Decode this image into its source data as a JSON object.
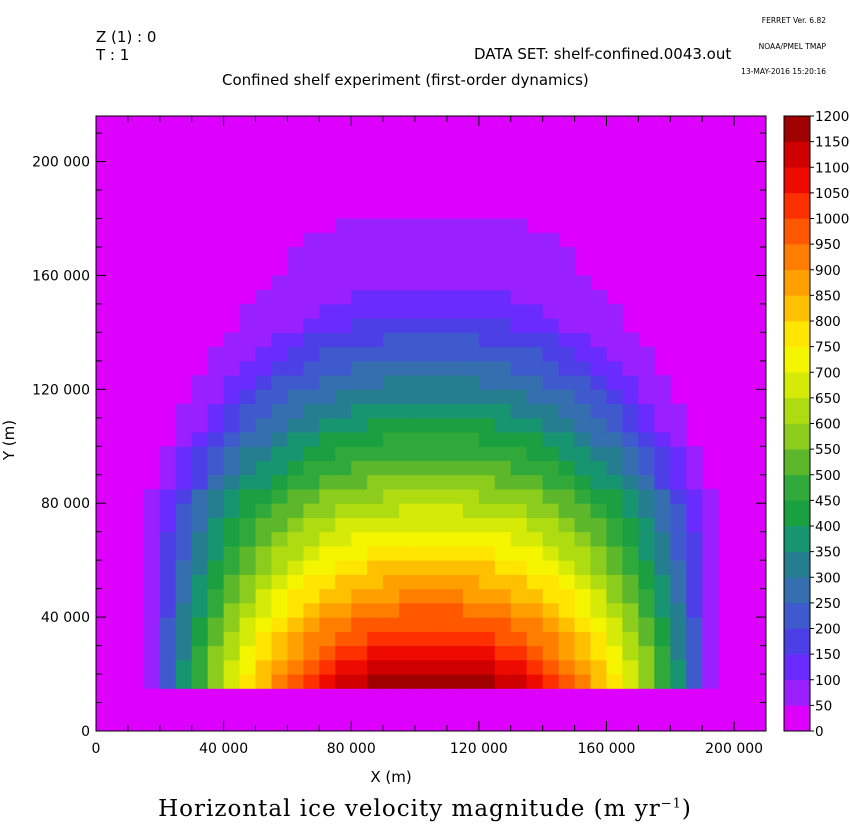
{
  "header": {
    "ferret_lines": [
      "FERRET Ver. 6.82",
      "NOAA/PMEL TMAP",
      "13-MAY-2016 15:20:16"
    ],
    "z_label": "Z (1) : 0",
    "t_label": "T : 1",
    "dataset": "DATA SET: shelf-confined.0043.out",
    "title": "Confined shelf experiment (first-order dynamics)"
  },
  "footer": {
    "text": "Horizontal ice velocity magnitude (m yr",
    "sup": "−1",
    "close": ")"
  },
  "chart_data": {
    "type": "heatmap",
    "title": "Confined shelf experiment (first-order dynamics)",
    "xlabel": "X (m)",
    "ylabel": "Y (m)",
    "xlim": [
      0,
      210000
    ],
    "ylim": [
      0,
      216000
    ],
    "xticks": [
      0,
      40000,
      80000,
      120000,
      160000,
      200000
    ],
    "xtick_labels": [
      "0",
      "40 000",
      "80 000",
      "120 000",
      "160 000",
      "200 000"
    ],
    "yticks": [
      0,
      40000,
      80000,
      120000,
      160000,
      200000
    ],
    "ytick_labels": [
      "0",
      "40 000",
      "80 000",
      "120 000",
      "160 000",
      "200 000"
    ],
    "grid": {
      "x0": 0,
      "dx": 5000,
      "nx": 42,
      "y0": 0,
      "dy": 5000,
      "ny": 43
    },
    "colorbar": {
      "levels": [
        0,
        50,
        100,
        150,
        200,
        250,
        300,
        350,
        400,
        450,
        500,
        550,
        600,
        650,
        700,
        750,
        800,
        850,
        900,
        950,
        1000,
        1050,
        1100,
        1150,
        1200
      ],
      "colors": [
        "#dd00ff",
        "#9b20ff",
        "#6a2bff",
        "#4d3fe6",
        "#3f5acc",
        "#356fb0",
        "#257e90",
        "#169570",
        "#1aa040",
        "#30a93a",
        "#5cb82a",
        "#8ccc1c",
        "#aedc10",
        "#d6ea08",
        "#f5f500",
        "#ffe500",
        "#ffc000",
        "#ffa000",
        "#ff7e00",
        "#ff5800",
        "#ff3000",
        "#ef0a00",
        "#d00000",
        "#a00000"
      ]
    },
    "field": {
      "description": "velocity magnitude on a 5 km grid; ice fills x 15-195 km, y 15-180 km (dome-shaped front); outside = 0",
      "rows_y_km_to_halfwidth_km": [
        [
          15,
          90
        ],
        [
          20,
          90
        ],
        [
          25,
          90
        ],
        [
          30,
          90
        ],
        [
          35,
          90
        ],
        [
          40,
          90
        ],
        [
          45,
          90
        ],
        [
          50,
          90
        ],
        [
          55,
          90
        ],
        [
          60,
          90
        ],
        [
          65,
          90
        ],
        [
          70,
          90
        ],
        [
          75,
          90
        ],
        [
          80,
          90
        ],
        [
          85,
          85
        ],
        [
          90,
          85
        ],
        [
          95,
          85
        ],
        [
          100,
          80
        ],
        [
          105,
          80
        ],
        [
          110,
          80
        ],
        [
          115,
          75
        ],
        [
          120,
          75
        ],
        [
          125,
          70
        ],
        [
          130,
          70
        ],
        [
          135,
          65
        ],
        [
          140,
          60
        ],
        [
          145,
          60
        ],
        [
          150,
          55
        ],
        [
          155,
          50
        ],
        [
          160,
          45
        ],
        [
          165,
          45
        ],
        [
          170,
          40
        ],
        [
          175,
          30
        ],
        [
          180,
          0
        ]
      ],
      "peak_value": 1180,
      "peak_location_km": [
        105,
        15
      ]
    }
  }
}
